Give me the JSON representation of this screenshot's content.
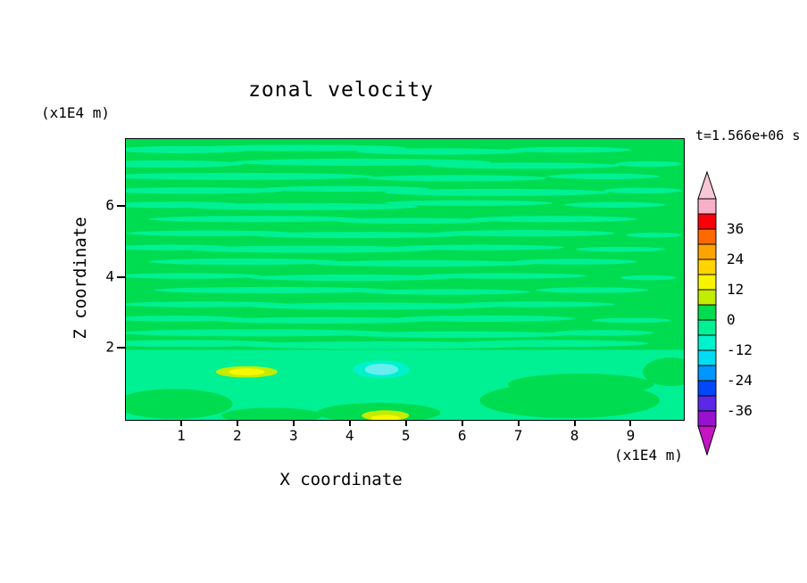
{
  "figure": {
    "background": "#ffffff",
    "text_color": "#000000"
  },
  "chart_data": {
    "type": "contour",
    "title": "zonal velocity",
    "time_label": "t=1.566e+06 s",
    "xlabel": "X coordinate",
    "ylabel": "Z coordinate",
    "x_unit_label": "(x1E4 m)",
    "y_unit_label": "(x1E4 m)",
    "xlim": [
      0,
      9.93
    ],
    "ylim": [
      0,
      7.9
    ],
    "x_ticks": [
      1,
      2,
      3,
      4,
      5,
      6,
      7,
      8,
      9
    ],
    "y_ticks": [
      2,
      4,
      6
    ],
    "grid": false,
    "legend_position": "colorbar-right",
    "field": {
      "description": "Filled contour field of zonal velocity: nearly uniform near 0 (green) with faint horizontal streaks slightly negative (spring green); a band below z=2 around -3; small positive anomaly near (x=2.2,z=1.35); negative anomaly near (x=4.6,z=1.4); small positive anomaly near (x=4.6,z=0.1)",
      "base": "g",
      "colors": {
        "g": "#00DC50",
        "sg": "#00F094",
        "cy": "#00F2CC",
        "lcy": "#66EDEF",
        "yg": "#C2EC00",
        "yl": "#F6F800"
      },
      "bands": [
        [
          0,
          1.97,
          9.93,
          1.97,
          "sg"
        ]
      ],
      "blobs": [
        [
          1.0,
          7.6,
          1.2,
          0.1,
          "sg"
        ],
        [
          3.1,
          7.65,
          1.9,
          0.09,
          "sg"
        ],
        [
          5.6,
          7.55,
          1.5,
          0.09,
          "sg"
        ],
        [
          7.9,
          7.6,
          1.1,
          0.08,
          "sg"
        ],
        [
          0.7,
          7.2,
          1.4,
          0.1,
          "sg"
        ],
        [
          4.2,
          7.25,
          2.3,
          0.1,
          "sg"
        ],
        [
          7.1,
          7.15,
          1.7,
          0.09,
          "sg"
        ],
        [
          9.3,
          7.2,
          0.6,
          0.08,
          "sg"
        ],
        [
          2.0,
          6.85,
          2.4,
          0.1,
          "sg"
        ],
        [
          5.9,
          6.8,
          1.6,
          0.09,
          "sg"
        ],
        [
          8.5,
          6.85,
          1.0,
          0.08,
          "sg"
        ],
        [
          1.2,
          6.45,
          1.6,
          0.09,
          "sg"
        ],
        [
          3.9,
          6.5,
          1.5,
          0.08,
          "sg"
        ],
        [
          6.6,
          6.4,
          2.0,
          0.1,
          "sg"
        ],
        [
          9.2,
          6.45,
          0.7,
          0.08,
          "sg"
        ],
        [
          0.9,
          6.05,
          1.2,
          0.09,
          "sg"
        ],
        [
          3.1,
          6.0,
          2.1,
          0.1,
          "sg"
        ],
        [
          6.1,
          6.1,
          1.5,
          0.08,
          "sg"
        ],
        [
          8.7,
          6.05,
          0.9,
          0.08,
          "sg"
        ],
        [
          2.3,
          5.65,
          1.9,
          0.09,
          "sg"
        ],
        [
          5.1,
          5.6,
          1.4,
          0.08,
          "sg"
        ],
        [
          7.6,
          5.65,
          1.5,
          0.09,
          "sg"
        ],
        [
          1.5,
          5.25,
          1.5,
          0.08,
          "sg"
        ],
        [
          4.1,
          5.2,
          1.9,
          0.09,
          "sg"
        ],
        [
          7.1,
          5.25,
          1.6,
          0.09,
          "sg"
        ],
        [
          9.4,
          5.2,
          0.5,
          0.07,
          "sg"
        ],
        [
          0.8,
          4.85,
          1.1,
          0.08,
          "sg"
        ],
        [
          3.3,
          4.8,
          2.2,
          0.1,
          "sg"
        ],
        [
          6.3,
          4.85,
          1.5,
          0.08,
          "sg"
        ],
        [
          8.8,
          4.8,
          0.8,
          0.07,
          "sg"
        ],
        [
          2.1,
          4.45,
          1.7,
          0.09,
          "sg"
        ],
        [
          5.3,
          4.4,
          2.0,
          0.09,
          "sg"
        ],
        [
          8.0,
          4.45,
          1.1,
          0.08,
          "sg"
        ],
        [
          1.1,
          4.05,
          1.3,
          0.08,
          "sg"
        ],
        [
          4.0,
          4.0,
          1.8,
          0.09,
          "sg"
        ],
        [
          6.7,
          4.05,
          1.5,
          0.08,
          "sg"
        ],
        [
          9.3,
          4.0,
          0.5,
          0.07,
          "sg"
        ],
        [
          2.6,
          3.65,
          2.1,
          0.09,
          "sg"
        ],
        [
          5.7,
          3.6,
          1.5,
          0.08,
          "sg"
        ],
        [
          8.3,
          3.65,
          1.0,
          0.08,
          "sg"
        ],
        [
          1.4,
          3.25,
          1.5,
          0.08,
          "sg"
        ],
        [
          4.4,
          3.2,
          2.2,
          0.1,
          "sg"
        ],
        [
          7.3,
          3.25,
          1.4,
          0.08,
          "sg"
        ],
        [
          0.9,
          2.85,
          1.2,
          0.08,
          "sg"
        ],
        [
          3.5,
          2.8,
          1.9,
          0.09,
          "sg"
        ],
        [
          6.4,
          2.85,
          1.6,
          0.09,
          "sg"
        ],
        [
          9.0,
          2.8,
          0.7,
          0.07,
          "sg"
        ],
        [
          2.3,
          2.45,
          2.4,
          0.1,
          "sg"
        ],
        [
          5.9,
          2.4,
          2.0,
          0.09,
          "sg"
        ],
        [
          8.5,
          2.45,
          0.9,
          0.08,
          "sg"
        ],
        [
          1.1,
          2.15,
          1.6,
          0.1,
          "sg"
        ],
        [
          4.6,
          2.1,
          2.6,
          0.11,
          "sg"
        ],
        [
          7.6,
          2.15,
          1.7,
          0.1,
          "sg"
        ],
        [
          0.85,
          0.45,
          1.05,
          0.42,
          "g"
        ],
        [
          2.6,
          0.12,
          0.9,
          0.22,
          "g"
        ],
        [
          4.5,
          0.2,
          1.1,
          0.28,
          "g"
        ],
        [
          7.9,
          0.55,
          1.6,
          0.5,
          "g"
        ],
        [
          8.1,
          1.0,
          1.3,
          0.3,
          "g"
        ],
        [
          9.7,
          1.35,
          0.5,
          0.4,
          "g"
        ],
        [
          2.15,
          1.35,
          0.55,
          0.16,
          "yg"
        ],
        [
          2.15,
          1.35,
          0.32,
          0.1,
          "yl"
        ],
        [
          4.55,
          1.42,
          0.5,
          0.25,
          "cy"
        ],
        [
          4.55,
          1.42,
          0.3,
          0.16,
          "lcy"
        ],
        [
          4.62,
          0.12,
          0.42,
          0.15,
          "yg"
        ],
        [
          4.62,
          0.05,
          0.26,
          0.09,
          "yl"
        ]
      ]
    },
    "colorbar": {
      "vmin": -42,
      "vmax": 48,
      "labels": [
        36,
        24,
        12,
        0,
        -12,
        -24,
        -36
      ],
      "top_color": "#F8C6D4",
      "bottom_color": "#C414C4",
      "segments": [
        {
          "from": 42,
          "to": 48,
          "color": "#F8B0C8"
        },
        {
          "from": 36,
          "to": 42,
          "color": "#FA0008"
        },
        {
          "from": 30,
          "to": 36,
          "color": "#FF6A00"
        },
        {
          "from": 24,
          "to": 30,
          "color": "#FFA300"
        },
        {
          "from": 18,
          "to": 24,
          "color": "#FFD400"
        },
        {
          "from": 12,
          "to": 18,
          "color": "#F8F400"
        },
        {
          "from": 6,
          "to": 12,
          "color": "#C2EC00"
        },
        {
          "from": 0,
          "to": 6,
          "color": "#00DC50"
        },
        {
          "from": -6,
          "to": 0,
          "color": "#00F094"
        },
        {
          "from": -12,
          "to": -6,
          "color": "#00F2CC"
        },
        {
          "from": -18,
          "to": -12,
          "color": "#00DCF2"
        },
        {
          "from": -24,
          "to": -18,
          "color": "#0096FF"
        },
        {
          "from": -30,
          "to": -24,
          "color": "#0048FA"
        },
        {
          "from": -36,
          "to": -30,
          "color": "#5A28E6"
        },
        {
          "from": -42,
          "to": -36,
          "color": "#9812CE"
        }
      ]
    }
  }
}
